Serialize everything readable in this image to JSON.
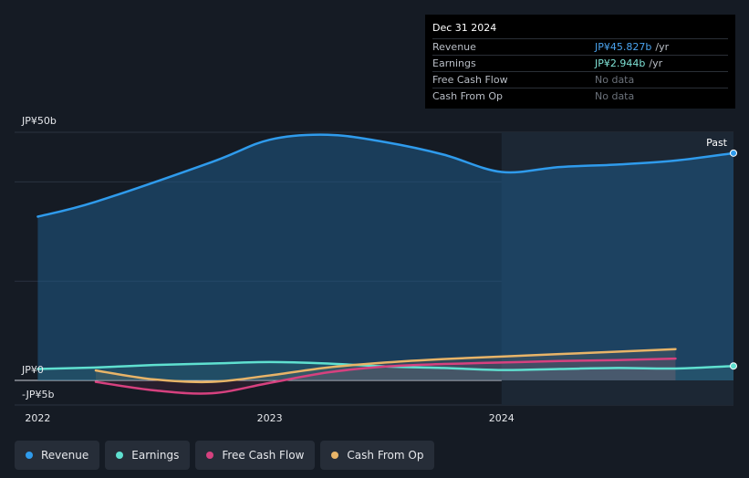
{
  "tooltip": {
    "date": "Dec 31 2024",
    "rows": [
      {
        "label": "Revenue",
        "value": "JP¥45.827b",
        "unit": "/yr",
        "color": "#4aa3ee"
      },
      {
        "label": "Earnings",
        "value": "JP¥2.944b",
        "unit": "/yr",
        "color": "#7fe3d6"
      },
      {
        "label": "Free Cash Flow",
        "value": "No data",
        "unit": "",
        "color": "#6b717a"
      },
      {
        "label": "Cash From Op",
        "value": "No data",
        "unit": "",
        "color": "#6b717a"
      }
    ]
  },
  "legend": [
    {
      "label": "Revenue",
      "color": "#2f9bec"
    },
    {
      "label": "Earnings",
      "color": "#5fe0d0"
    },
    {
      "label": "Free Cash Flow",
      "color": "#d6417f"
    },
    {
      "label": "Cash From Op",
      "color": "#e8b468"
    }
  ],
  "chart_data": {
    "type": "line",
    "past_label": "Past",
    "y_tick_labels": [
      "JP¥50b",
      "JP¥0",
      "-JP¥5b"
    ],
    "x_tick_labels": [
      "2022",
      "2023",
      "2024"
    ],
    "ylim": [
      -5,
      50
    ],
    "xlim": [
      2021.9,
      2025.0
    ],
    "past_start": 2024.0,
    "series": [
      {
        "name": "Revenue",
        "color": "#2f9bec",
        "fill": true,
        "x": [
          2021.9,
          2022.25,
          2022.75,
          2023.0,
          2023.25,
          2023.5,
          2023.75,
          2024.0,
          2024.25,
          2024.5,
          2024.75,
          2025.0
        ],
        "y": [
          33,
          36,
          44,
          48.5,
          49.5,
          48,
          45.5,
          42,
          43,
          43.5,
          44.3,
          45.8
        ]
      },
      {
        "name": "Earnings",
        "color": "#5fe0d0",
        "fill": false,
        "x": [
          2021.9,
          2022.25,
          2022.5,
          2022.75,
          2023.0,
          2023.25,
          2023.5,
          2023.75,
          2024.0,
          2024.25,
          2024.5,
          2024.75,
          2025.0
        ],
        "y": [
          2.3,
          2.6,
          3.1,
          3.4,
          3.7,
          3.4,
          2.8,
          2.5,
          2.1,
          2.3,
          2.5,
          2.4,
          2.9
        ]
      },
      {
        "name": "Free Cash Flow",
        "color": "#d6417f",
        "fill": false,
        "x": [
          2022.25,
          2022.5,
          2022.75,
          2023.0,
          2023.25,
          2023.5,
          2023.75,
          2024.0,
          2024.25,
          2024.5,
          2024.75
        ],
        "y": [
          -0.3,
          -2.0,
          -2.6,
          -0.5,
          1.6,
          2.8,
          3.3,
          3.6,
          3.9,
          4.1,
          4.4
        ]
      },
      {
        "name": "Cash From Op",
        "color": "#e8b468",
        "fill": false,
        "x": [
          2022.25,
          2022.5,
          2022.75,
          2023.0,
          2023.25,
          2023.5,
          2023.75,
          2024.0,
          2024.25,
          2024.5,
          2024.75
        ],
        "y": [
          2.0,
          0.2,
          -0.3,
          1.0,
          2.6,
          3.6,
          4.3,
          4.8,
          5.3,
          5.8,
          6.3
        ]
      }
    ]
  }
}
